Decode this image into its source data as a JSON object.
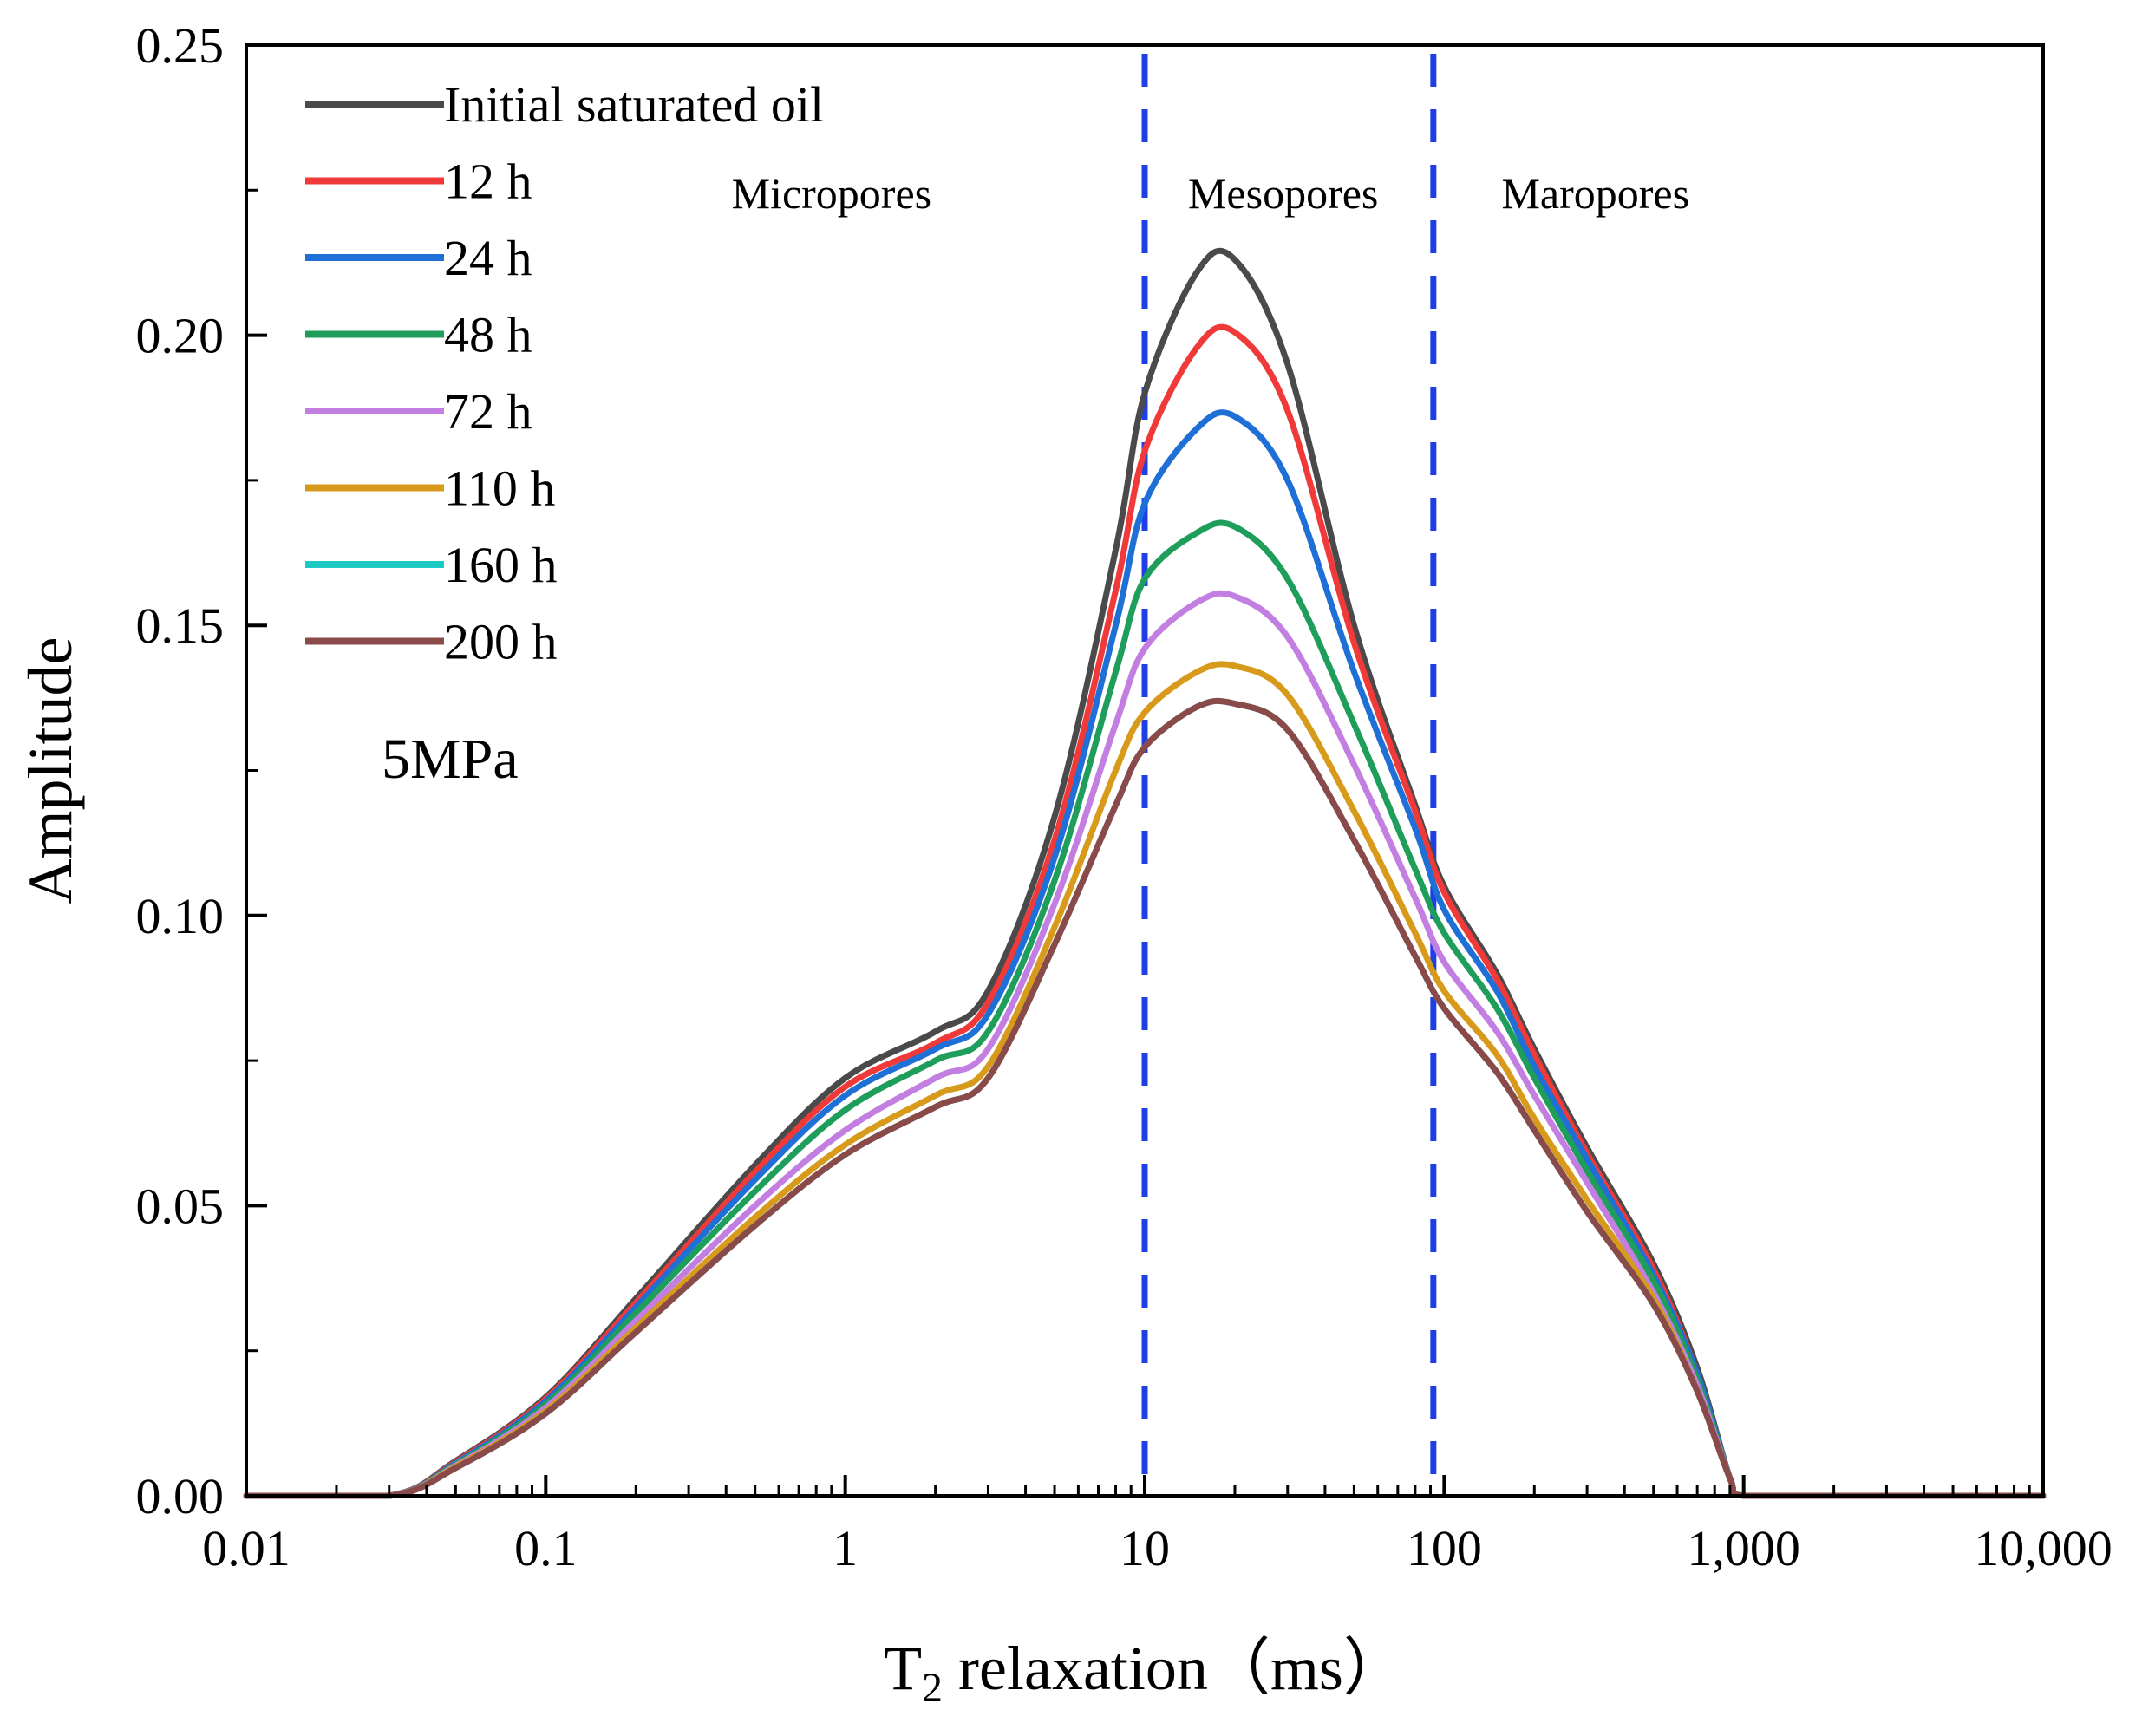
{
  "chart_data": {
    "type": "line",
    "x_scale": "log",
    "xlabel": "T2 relaxation（ms）",
    "xlabel_main": "T",
    "xlabel_sub": "2",
    "xlabel_rest": " relaxation（ms）",
    "ylabel": "Amplitude",
    "xlim": [
      0.01,
      10000
    ],
    "ylim": [
      0,
      0.25
    ],
    "x_ticks": [
      0.01,
      0.1,
      1,
      10,
      100,
      1000,
      10000
    ],
    "x_tick_labels": [
      "0.01",
      "0.1",
      "1",
      "10",
      "100",
      "1,000",
      "10,000"
    ],
    "y_ticks": [
      0,
      0.05,
      0.1,
      0.15,
      0.2,
      0.25
    ],
    "y_tick_labels": [
      "0.00",
      "0.05",
      "0.10",
      "0.15",
      "0.20",
      "0.25"
    ],
    "annotation": "5MPa",
    "legend_position": "top-left",
    "vlines": [
      {
        "x": 10,
        "color": "#1f3fe6",
        "style": "dashed"
      },
      {
        "x": 92,
        "color": "#1f3fe6",
        "style": "dashed"
      }
    ],
    "regions": [
      {
        "label": "Micropores",
        "x": 0.9
      },
      {
        "label": "Mesopores",
        "x": 29
      },
      {
        "label": "Maropores",
        "x": 320
      }
    ],
    "x": [
      0.01,
      0.03,
      0.05,
      0.1,
      0.2,
      0.5,
      1,
      2,
      3,
      5,
      8,
      10,
      15,
      20,
      30,
      50,
      80,
      100,
      150,
      200,
      300,
      500,
      700,
      900,
      1000,
      2000,
      10000
    ],
    "series": [
      {
        "name": "Initial saturated oil",
        "color": "#4a4a4a",
        "values": [
          0,
          0,
          0.006,
          0.017,
          0.034,
          0.057,
          0.072,
          0.08,
          0.087,
          0.117,
          0.163,
          0.19,
          0.211,
          0.213,
          0.195,
          0.15,
          0.119,
          0.105,
          0.09,
          0.077,
          0.06,
          0.04,
          0.022,
          0.003,
          0,
          0,
          0
        ]
      },
      {
        "name": "12 h",
        "color": "#f03a3a",
        "values": [
          0,
          0,
          0.0058,
          0.0167,
          0.0333,
          0.0558,
          0.0705,
          0.078,
          0.085,
          0.113,
          0.156,
          0.18,
          0.198,
          0.2005,
          0.187,
          0.147,
          0.118,
          0.104,
          0.089,
          0.076,
          0.059,
          0.039,
          0.021,
          0.003,
          0,
          0,
          0
        ]
      },
      {
        "name": "24 h",
        "color": "#1e6fd6",
        "values": [
          0,
          0,
          0.0056,
          0.0163,
          0.0325,
          0.0545,
          0.069,
          0.077,
          0.083,
          0.11,
          0.15,
          0.171,
          0.184,
          0.186,
          0.175,
          0.142,
          0.115,
          0.101,
          0.087,
          0.074,
          0.058,
          0.038,
          0.021,
          0.003,
          0,
          0,
          0
        ]
      },
      {
        "name": "48 h",
        "color": "#1e9e5a",
        "values": [
          0,
          0,
          0.0054,
          0.0158,
          0.0315,
          0.0525,
          0.0665,
          0.075,
          0.08,
          0.106,
          0.142,
          0.158,
          0.166,
          0.167,
          0.158,
          0.133,
          0.108,
          0.097,
          0.084,
          0.072,
          0.056,
          0.037,
          0.02,
          0.003,
          0,
          0,
          0
        ]
      },
      {
        "name": "72 h",
        "color": "#c27ee0",
        "values": [
          0,
          0,
          0.0052,
          0.0152,
          0.0302,
          0.05,
          0.063,
          0.072,
          0.077,
          0.102,
          0.133,
          0.146,
          0.154,
          0.155,
          0.148,
          0.126,
          0.103,
          0.092,
          0.08,
          0.069,
          0.054,
          0.035,
          0.019,
          0.003,
          0,
          0,
          0
        ]
      },
      {
        "name": "110 h",
        "color": "#d89a1a",
        "values": [
          0,
          0,
          0.005,
          0.0146,
          0.029,
          0.048,
          0.0605,
          0.069,
          0.074,
          0.098,
          0.125,
          0.135,
          0.142,
          0.143,
          0.138,
          0.118,
          0.097,
          0.087,
          0.076,
          0.065,
          0.051,
          0.034,
          0.018,
          0.003,
          0,
          0,
          0
        ]
      },
      {
        "name": "160 h",
        "color": "#1ec9c4",
        "values": [
          0,
          0,
          0.0048,
          0.0142,
          0.0282,
          0.0466,
          0.0588,
          0.067,
          0.072,
          0.095,
          0.119,
          0.129,
          0.136,
          0.1365,
          0.132,
          0.113,
          0.093,
          0.084,
          0.073,
          0.063,
          0.049,
          0.033,
          0.018,
          0.003,
          0,
          0,
          0
        ]
      },
      {
        "name": "200 h",
        "color": "#8b4a4a",
        "values": [
          0,
          0,
          0.0048,
          0.0142,
          0.0282,
          0.0466,
          0.0588,
          0.067,
          0.072,
          0.095,
          0.119,
          0.129,
          0.136,
          0.1365,
          0.132,
          0.113,
          0.093,
          0.084,
          0.073,
          0.063,
          0.049,
          0.033,
          0.018,
          0.003,
          0,
          0,
          0
        ]
      }
    ]
  }
}
